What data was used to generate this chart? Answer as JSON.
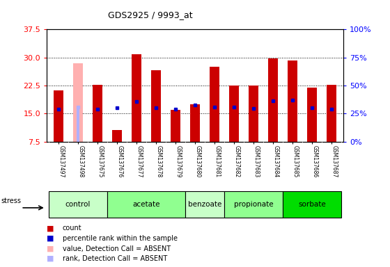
{
  "title": "GDS2925 / 9993_at",
  "samples": [
    "GSM137497",
    "GSM137498",
    "GSM137675",
    "GSM137676",
    "GSM137677",
    "GSM137678",
    "GSM137679",
    "GSM137680",
    "GSM137681",
    "GSM137682",
    "GSM137683",
    "GSM137684",
    "GSM137685",
    "GSM137686",
    "GSM137687"
  ],
  "count_values": [
    21.1,
    0,
    22.6,
    10.5,
    30.8,
    26.6,
    16.0,
    17.5,
    27.5,
    22.5,
    22.5,
    29.8,
    29.1,
    22.0,
    22.6
  ],
  "percentile_values": [
    16.1,
    16.7,
    16.2,
    16.5,
    18.2,
    16.6,
    16.2,
    17.3,
    16.7,
    16.8,
    16.3,
    18.3,
    18.5,
    16.5,
    16.2
  ],
  "absent_value_bar": [
    0,
    28.5,
    0,
    0,
    0,
    0,
    0,
    0,
    0,
    0,
    0,
    0,
    0,
    0,
    0
  ],
  "absent_rank_bar": [
    0,
    16.7,
    0,
    0,
    0,
    0,
    0,
    0,
    0,
    0,
    0,
    0,
    0,
    0,
    0
  ],
  "absent_flag": [
    false,
    true,
    false,
    false,
    false,
    false,
    false,
    false,
    false,
    false,
    false,
    false,
    false,
    false,
    false
  ],
  "groups": [
    {
      "label": "control",
      "indices": [
        0,
        1,
        2
      ],
      "color": "#c8ffc8"
    },
    {
      "label": "acetate",
      "indices": [
        3,
        4,
        5,
        6
      ],
      "color": "#90ff90"
    },
    {
      "label": "benzoate",
      "indices": [
        7,
        8
      ],
      "color": "#c8ffc8"
    },
    {
      "label": "propionate",
      "indices": [
        9,
        10,
        11
      ],
      "color": "#90ff90"
    },
    {
      "label": "sorbate",
      "indices": [
        12,
        13,
        14
      ],
      "color": "#00dd00"
    }
  ],
  "ylim_left": [
    7.5,
    37.5
  ],
  "ylim_right": [
    0,
    100
  ],
  "yticks_left": [
    7.5,
    15.0,
    22.5,
    30.0,
    37.5
  ],
  "yticks_right": [
    0,
    25,
    50,
    75,
    100
  ],
  "color_count": "#cc0000",
  "color_percentile": "#0000cc",
  "color_absent_value": "#ffb0b0",
  "color_absent_rank": "#b0b0ff",
  "bar_width": 0.5,
  "bg_plot": "#ffffff",
  "bg_xlabel": "#d8d8d8",
  "stress_label": "stress"
}
